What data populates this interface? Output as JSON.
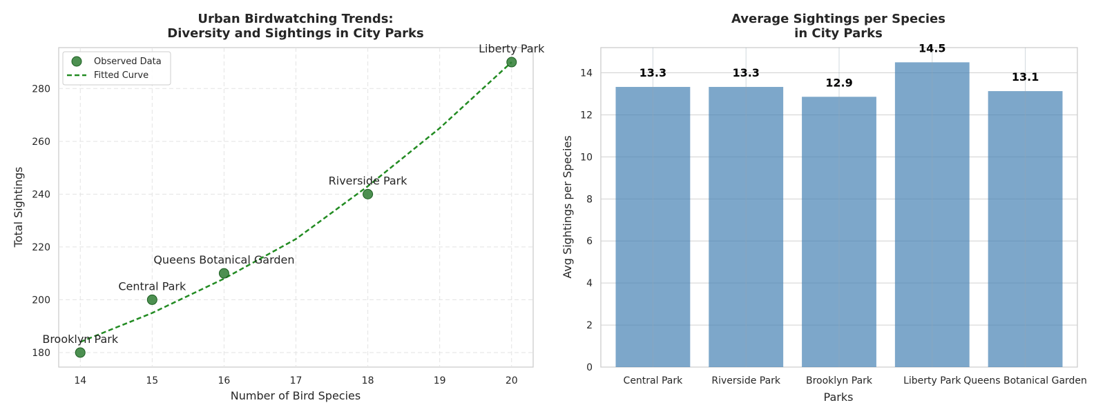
{
  "chart_data": [
    {
      "type": "scatter",
      "title": "Urban Birdwatching Trends:\nDiversity and Sightings in City Parks",
      "xlabel": "Number of Bird Species",
      "ylabel": "Total Sightings",
      "xlim": [
        13.7,
        20.3
      ],
      "ylim": [
        174.5,
        295.5
      ],
      "xticks": [
        14,
        15,
        16,
        17,
        18,
        19,
        20
      ],
      "yticks": [
        180,
        200,
        220,
        240,
        260,
        280
      ],
      "grid": true,
      "legend_position": "top-left",
      "legend": [
        "Observed Data",
        "Fitted Curve"
      ],
      "series": [
        {
          "name": "Observed Data",
          "kind": "scatter",
          "color": "#2e7d32",
          "points": [
            {
              "x": 14,
              "y": 180,
              "label": "Brooklyn Park"
            },
            {
              "x": 15,
              "y": 200,
              "label": "Central Park"
            },
            {
              "x": 16,
              "y": 210,
              "label": "Queens Botanical Garden"
            },
            {
              "x": 18,
              "y": 240,
              "label": "Riverside Park"
            },
            {
              "x": 20,
              "y": 290,
              "label": "Liberty Park"
            }
          ]
        },
        {
          "name": "Fitted Curve",
          "kind": "line",
          "style": "dashed",
          "color": "#228b22",
          "points": [
            {
              "x": 14,
              "y": 184
            },
            {
              "x": 15,
              "y": 195
            },
            {
              "x": 16,
              "y": 208
            },
            {
              "x": 17,
              "y": 223
            },
            {
              "x": 18,
              "y": 243
            },
            {
              "x": 19,
              "y": 265
            },
            {
              "x": 20,
              "y": 290
            }
          ]
        }
      ]
    },
    {
      "type": "bar",
      "title": "Average Sightings per Species\nin City Parks",
      "xlabel": "Parks",
      "ylabel": "Avg Sightings per Species",
      "ylim": [
        0,
        15.2
      ],
      "yticks": [
        0,
        2,
        4,
        6,
        8,
        10,
        12,
        14
      ],
      "grid": true,
      "color": "#4682b4",
      "categories": [
        "Central Park",
        "Riverside Park",
        "Brooklyn Park",
        "Liberty Park",
        "Queens Botanical Garden"
      ],
      "values": [
        13.33,
        13.33,
        12.86,
        14.5,
        13.13
      ],
      "value_labels": [
        "13.3",
        "13.3",
        "12.9",
        "14.5",
        "13.1"
      ]
    }
  ]
}
